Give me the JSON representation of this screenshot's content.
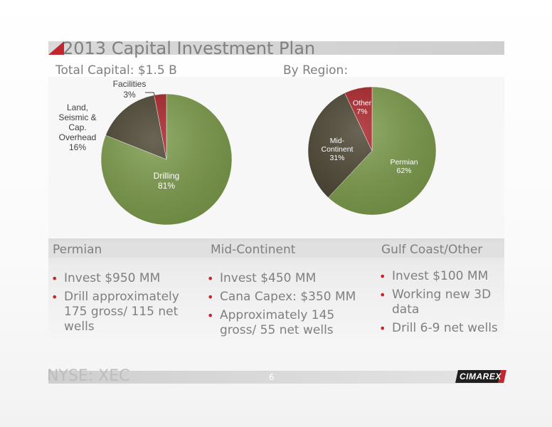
{
  "slide": {
    "title": "2013 Capital Investment Plan",
    "left_subhead": "Total Capital: $1.5 B",
    "right_subhead": "By Region:",
    "footer": "NYSE: XEC",
    "page_number": "6",
    "logo_text": "CIMAREX"
  },
  "colors": {
    "green": "#7b9a4a",
    "dark": "#4a4331",
    "red": "#a62126",
    "bullet": "#c0282d",
    "text_gray": "#7f7f7f"
  },
  "columns": [
    {
      "heading": "Permian",
      "bullets": [
        "Invest $950 MM",
        "Drill approximately 175 gross/ 115 net wells"
      ]
    },
    {
      "heading": "Mid-Continent",
      "bullets": [
        "Invest $450 MM",
        "Cana Capex: $350 MM",
        "Approximately 145 gross/ 55 net wells"
      ]
    },
    {
      "heading": "Gulf Coast/Other",
      "bullets": [
        "Invest $100 MM",
        "Working new 3D data",
        "Drill 6-9 net wells"
      ]
    }
  ],
  "chart_data": [
    {
      "type": "pie",
      "title": "Total Capital: $1.5 B",
      "slices": [
        {
          "label": "Drilling",
          "percent_label": "81%",
          "value": 81,
          "color": "#7b9a4a"
        },
        {
          "label": "Land, Seismic & Cap. Overhead",
          "percent_label": "16%",
          "value": 16,
          "color": "#4a4331"
        },
        {
          "label": "Facilities",
          "percent_label": "3%",
          "value": 3,
          "color": "#a62126"
        }
      ]
    },
    {
      "type": "pie",
      "title": "By Region:",
      "slices": [
        {
          "label": "Permian",
          "percent_label": "62%",
          "value": 62,
          "color": "#7b9a4a"
        },
        {
          "label": "Mid-Continent",
          "percent_label": "31%",
          "value": 31,
          "color": "#4a4331"
        },
        {
          "label": "Other",
          "percent_label": "7%",
          "value": 7,
          "color": "#a62126"
        }
      ]
    }
  ]
}
